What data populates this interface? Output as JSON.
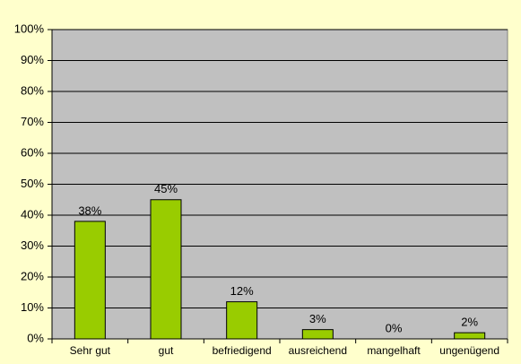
{
  "chart_data": {
    "type": "bar",
    "categories": [
      "Sehr gut",
      "gut",
      "befriedigend",
      "ausreichend",
      "mangelhaft",
      "ungenügend"
    ],
    "values": [
      38,
      45,
      12,
      3,
      0,
      2
    ],
    "value_labels": [
      "38%",
      "45%",
      "12%",
      "3%",
      "0%",
      "2%"
    ],
    "color": "#99cc00",
    "ylim": [
      0,
      100
    ],
    "yticks": [
      {
        "value": 0,
        "label": "0%"
      },
      {
        "value": 10,
        "label": "10%"
      },
      {
        "value": 20,
        "label": "20%"
      },
      {
        "value": 30,
        "label": "30%"
      },
      {
        "value": 40,
        "label": "40%"
      },
      {
        "value": 50,
        "label": "50%"
      },
      {
        "value": 60,
        "label": "60%"
      },
      {
        "value": 70,
        "label": "70%"
      },
      {
        "value": 80,
        "label": "80%"
      },
      {
        "value": 90,
        "label": "90%"
      },
      {
        "value": 100,
        "label": "100%"
      }
    ],
    "grid": true
  }
}
